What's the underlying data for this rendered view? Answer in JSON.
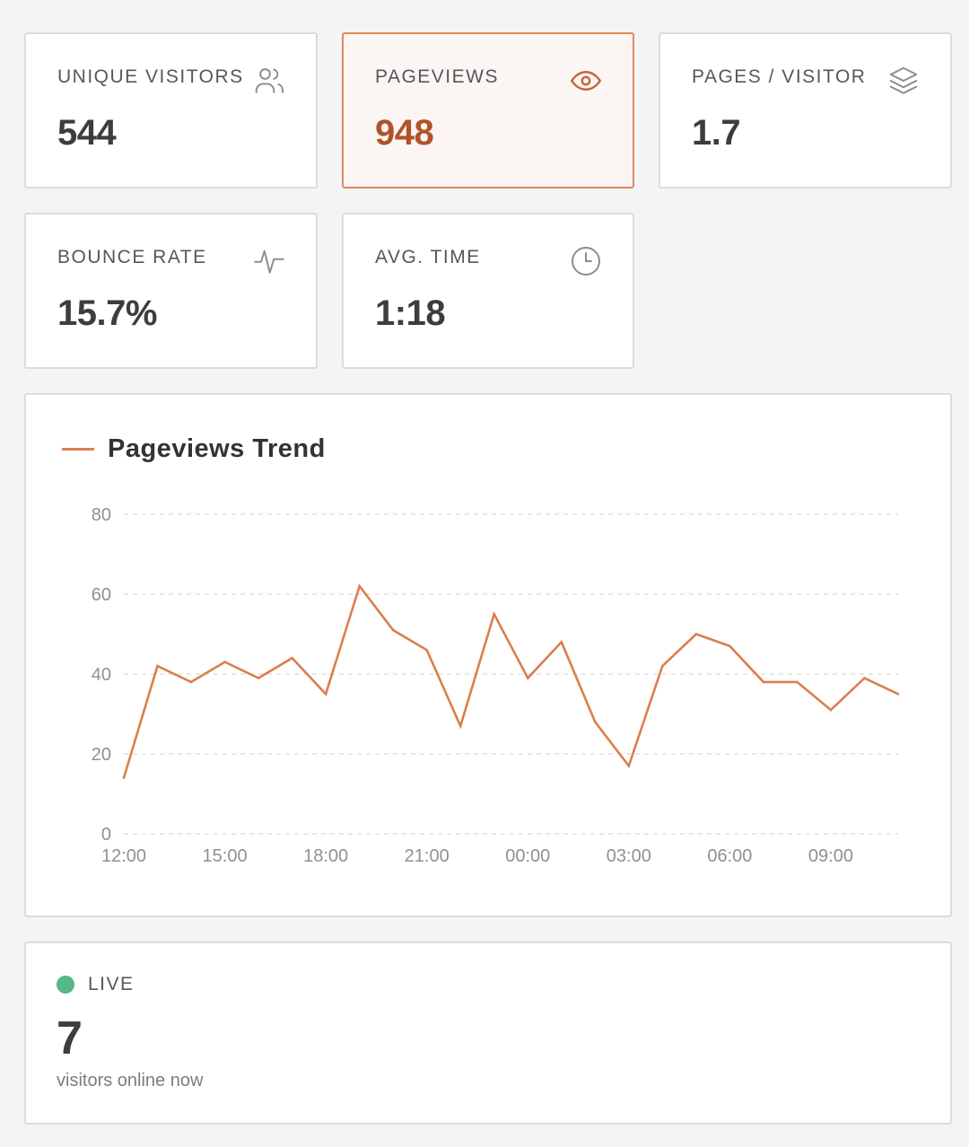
{
  "stats": [
    {
      "label": "UNIQUE VISITORS",
      "value": "544",
      "icon": "users-icon",
      "active": false
    },
    {
      "label": "PAGEVIEWS",
      "value": "948",
      "icon": "eye-icon",
      "active": true
    },
    {
      "label": "PAGES / VISITOR",
      "value": "1.7",
      "icon": "layers-icon",
      "active": false
    },
    {
      "label": "BOUNCE RATE",
      "value": "15.7%",
      "icon": "activity-icon",
      "active": false
    },
    {
      "label": "AVG. TIME",
      "value": "1:18",
      "icon": "clock-icon",
      "active": false
    }
  ],
  "colors": {
    "accent": "#dc7e4c",
    "accent_dark": "#b0532a",
    "live": "#55b886"
  },
  "chart_data": {
    "type": "line",
    "title": "Pageviews Trend",
    "x": [
      "12:00",
      "13:00",
      "14:00",
      "15:00",
      "16:00",
      "17:00",
      "18:00",
      "19:00",
      "20:00",
      "21:00",
      "22:00",
      "23:00",
      "00:00",
      "01:00",
      "02:00",
      "03:00",
      "04:00",
      "05:00",
      "06:00",
      "07:00",
      "08:00",
      "09:00",
      "10:00",
      "11:00"
    ],
    "x_tick_labels": [
      "12:00",
      "15:00",
      "18:00",
      "21:00",
      "00:00",
      "03:00",
      "06:00",
      "09:00"
    ],
    "y_ticks": [
      "0",
      "20",
      "40",
      "60",
      "80"
    ],
    "ylim": [
      0,
      80
    ],
    "grid": true,
    "legend": "top-left",
    "series": [
      {
        "name": "Pageviews Trend",
        "values": [
          14,
          42,
          38,
          43,
          39,
          44,
          35,
          62,
          51,
          46,
          27,
          55,
          39,
          48,
          28,
          17,
          42,
          50,
          47,
          38,
          38,
          31,
          39,
          35
        ]
      }
    ]
  },
  "live": {
    "label": "LIVE",
    "count": "7",
    "subtitle": "visitors online now"
  }
}
